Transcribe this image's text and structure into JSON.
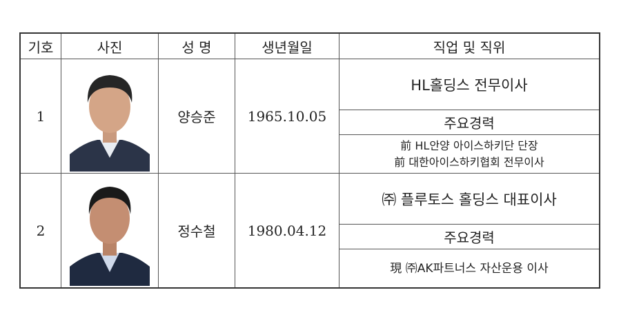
{
  "headers": {
    "no": "기호",
    "photo": "사진",
    "name": "성 명",
    "birth": "생년월일",
    "job": "직업 및 직위"
  },
  "rows": [
    {
      "no": "1",
      "name": "양승준",
      "birth": "1965.10.05",
      "position": "HL홀딩스 전무이사",
      "career_label": "주요경력",
      "career": [
        "前 HL안양 아이스하키단 단장",
        "前 대한아이스하키협회 전무이사"
      ]
    },
    {
      "no": "2",
      "name": "정수철",
      "birth": "1980.04.12",
      "position": "㈜ 플루토스 홀딩스 대표이사",
      "career_label": "주요경력",
      "career": [
        "現 ㈜AK파트너스 자산운용 이사"
      ]
    }
  ]
}
